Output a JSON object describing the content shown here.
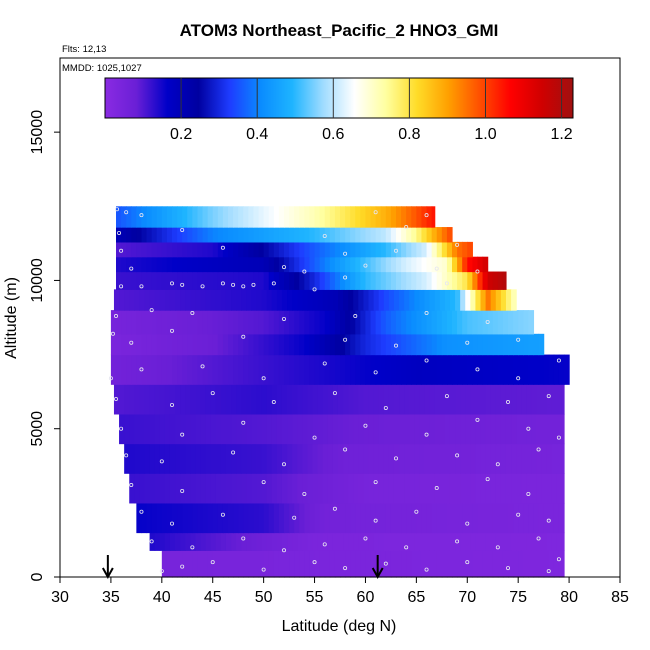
{
  "chart_data": {
    "type": "heatmap",
    "title": "ATOM3 Northeast_Pacific_2 HNO3_GMI",
    "annotations": [
      "Flts: 12,13",
      "MMDD: 1025,1027"
    ],
    "xlabel": "Latitude (deg N)",
    "ylabel": "Altitude (m)",
    "xlim": [
      30,
      85
    ],
    "ylim": [
      0,
      17500
    ],
    "x_ticks": [
      "30",
      "35",
      "40",
      "45",
      "50",
      "55",
      "60",
      "65",
      "70",
      "75",
      "80",
      "85"
    ],
    "y_ticks": [
      "0",
      "5000",
      "10000",
      "15000"
    ],
    "colorbar": {
      "range": [
        0.0,
        1.23
      ],
      "tick_labels": [
        "0.2",
        "0.4",
        "0.6",
        "0.8",
        "1.0",
        "1.2"
      ],
      "colors": [
        "#8a2be2",
        "#6a1fd6",
        "#0000c8",
        "#0000a0",
        "#1e3cff",
        "#0a8cff",
        "#1eb4ff",
        "#a0dcff",
        "#ffffff",
        "#ffffa0",
        "#ffdc28",
        "#ffa000",
        "#ff5000",
        "#ff0000",
        "#d00000",
        "#a01010"
      ]
    },
    "grid": false,
    "legend": "colorbar top",
    "arrows_lat": [
      34.7,
      61.2
    ],
    "layers": [
      {
        "bottom": 0,
        "top": 900,
        "from": 40,
        "to": 79.5,
        "values": [
          [
            40,
            0.05
          ],
          [
            79.5,
            0.03
          ]
        ]
      },
      {
        "bottom": 900,
        "top": 1500,
        "from": 38.8,
        "to": 79.5,
        "values": [
          [
            38.8,
            0.14
          ],
          [
            45,
            0.1
          ],
          [
            55,
            0.04
          ],
          [
            79.5,
            0.03
          ]
        ]
      },
      {
        "bottom": 1500,
        "top": 2500,
        "from": 37.5,
        "to": 79.5,
        "values": [
          [
            37.5,
            0.16
          ],
          [
            50,
            0.13
          ],
          [
            56,
            0.06
          ],
          [
            79.5,
            0.04
          ]
        ]
      },
      {
        "bottom": 2500,
        "top": 3500,
        "from": 36.8,
        "to": 79.5,
        "values": [
          [
            36.8,
            0.12
          ],
          [
            50,
            0.1
          ],
          [
            60,
            0.05
          ],
          [
            79.5,
            0.04
          ]
        ]
      },
      {
        "bottom": 3500,
        "top": 4500,
        "from": 36.3,
        "to": 79.5,
        "values": [
          [
            36.3,
            0.14
          ],
          [
            50,
            0.12
          ],
          [
            58,
            0.07
          ],
          [
            79.5,
            0.05
          ]
        ]
      },
      {
        "bottom": 4500,
        "top": 5500,
        "from": 35.8,
        "to": 79.5,
        "values": [
          [
            35.8,
            0.12
          ],
          [
            50,
            0.1
          ],
          [
            60,
            0.08
          ],
          [
            79.5,
            0.06
          ]
        ]
      },
      {
        "bottom": 5500,
        "top": 6500,
        "from": 35.3,
        "to": 79.5,
        "values": [
          [
            35.3,
            0.1
          ],
          [
            50,
            0.13
          ],
          [
            60,
            0.1
          ],
          [
            79.5,
            0.09
          ]
        ]
      },
      {
        "bottom": 6500,
        "top": 7500,
        "from": 35,
        "to": 80,
        "values": [
          [
            35,
            0.06
          ],
          [
            45,
            0.1
          ],
          [
            55,
            0.14
          ],
          [
            65,
            0.18
          ],
          [
            80,
            0.16
          ]
        ]
      },
      {
        "bottom": 7500,
        "top": 8200,
        "from": 35,
        "to": 77.5,
        "values": [
          [
            35,
            0.04
          ],
          [
            45,
            0.08
          ],
          [
            54,
            0.16
          ],
          [
            60,
            0.3
          ],
          [
            68,
            0.42
          ],
          [
            77.5,
            0.45
          ]
        ]
      },
      {
        "bottom": 8200,
        "top": 9000,
        "from": 35,
        "to": 76.5,
        "values": [
          [
            35,
            0.05
          ],
          [
            50,
            0.1
          ],
          [
            56,
            0.16
          ],
          [
            62,
            0.36
          ],
          [
            70,
            0.52
          ],
          [
            76.5,
            0.56
          ]
        ]
      },
      {
        "bottom": 9000,
        "top": 9700,
        "from": 35.3,
        "to": 74.8,
        "values": [
          [
            35.3,
            0.1
          ],
          [
            50,
            0.14
          ],
          [
            57,
            0.2
          ],
          [
            62,
            0.34
          ],
          [
            69,
            0.5
          ],
          [
            72,
            0.95
          ],
          [
            74.8,
            0.7
          ]
        ]
      },
      {
        "bottom": 9700,
        "top": 10300,
        "from": 35.5,
        "to": 73.8,
        "values": [
          [
            35.5,
            0.12
          ],
          [
            50,
            0.14
          ],
          [
            55,
            0.3
          ],
          [
            60,
            0.5
          ],
          [
            66,
            0.62
          ],
          [
            70,
            0.8
          ],
          [
            72,
            1.15
          ],
          [
            73.8,
            1.2
          ]
        ]
      },
      {
        "bottom": 10300,
        "top": 10800,
        "from": 35.5,
        "to": 72,
        "values": [
          [
            35.5,
            0.14
          ],
          [
            50,
            0.2
          ],
          [
            58,
            0.46
          ],
          [
            64,
            0.62
          ],
          [
            68,
            0.7
          ],
          [
            70,
            1.05
          ],
          [
            72,
            1.15
          ]
        ]
      },
      {
        "bottom": 10800,
        "top": 11300,
        "from": 35.5,
        "to": 70.5,
        "values": [
          [
            35.5,
            0.1
          ],
          [
            45,
            0.14
          ],
          [
            55,
            0.36
          ],
          [
            62,
            0.5
          ],
          [
            66,
            0.62
          ],
          [
            69,
            0.95
          ],
          [
            70.5,
            1.0
          ]
        ]
      },
      {
        "bottom": 11300,
        "top": 11800,
        "from": 35.5,
        "to": 68.5,
        "values": [
          [
            35.5,
            0.2
          ],
          [
            45,
            0.4
          ],
          [
            55,
            0.5
          ],
          [
            62,
            0.6
          ],
          [
            65,
            0.75
          ],
          [
            67,
            0.9
          ],
          [
            68.5,
            1.0
          ]
        ]
      },
      {
        "bottom": 11800,
        "top": 12500,
        "from": 35.5,
        "to": 66.8,
        "values": [
          [
            35.5,
            0.35
          ],
          [
            45,
            0.55
          ],
          [
            55,
            0.72
          ],
          [
            62,
            0.88
          ],
          [
            65,
            0.98
          ],
          [
            66.8,
            1.05
          ]
        ]
      }
    ],
    "sample_points": [
      [
        40,
        200
      ],
      [
        42,
        350
      ],
      [
        45,
        500
      ],
      [
        50,
        250
      ],
      [
        55,
        500
      ],
      [
        58,
        300
      ],
      [
        62,
        450
      ],
      [
        66,
        250
      ],
      [
        70,
        500
      ],
      [
        74,
        300
      ],
      [
        78,
        200
      ],
      [
        79,
        600
      ],
      [
        39,
        1200
      ],
      [
        43,
        1000
      ],
      [
        48,
        1300
      ],
      [
        52,
        900
      ],
      [
        56,
        1100
      ],
      [
        60,
        1300
      ],
      [
        64,
        1000
      ],
      [
        69,
        1200
      ],
      [
        73,
        1000
      ],
      [
        77,
        1300
      ],
      [
        38,
        2200
      ],
      [
        41,
        1800
      ],
      [
        46,
        2100
      ],
      [
        53,
        2000
      ],
      [
        57,
        2300
      ],
      [
        61,
        1900
      ],
      [
        65,
        2200
      ],
      [
        70,
        1800
      ],
      [
        75,
        2100
      ],
      [
        78,
        1900
      ],
      [
        37,
        3100
      ],
      [
        42,
        2900
      ],
      [
        50,
        3200
      ],
      [
        54,
        2800
      ],
      [
        61,
        3200
      ],
      [
        67,
        3000
      ],
      [
        72,
        3300
      ],
      [
        76,
        2800
      ],
      [
        36.5,
        4100
      ],
      [
        40,
        3900
      ],
      [
        47,
        4200
      ],
      [
        52,
        3800
      ],
      [
        58,
        4300
      ],
      [
        63,
        4000
      ],
      [
        69,
        4100
      ],
      [
        73,
        3800
      ],
      [
        77,
        4300
      ],
      [
        36,
        5000
      ],
      [
        42,
        4800
      ],
      [
        48,
        5200
      ],
      [
        55,
        4700
      ],
      [
        60,
        5100
      ],
      [
        66,
        4800
      ],
      [
        71,
        5300
      ],
      [
        76,
        5000
      ],
      [
        79,
        4700
      ],
      [
        35.5,
        6000
      ],
      [
        41,
        5800
      ],
      [
        45,
        6200
      ],
      [
        51,
        5900
      ],
      [
        57,
        6200
      ],
      [
        62,
        5700
      ],
      [
        68,
        6100
      ],
      [
        74,
        5900
      ],
      [
        78,
        6100
      ],
      [
        35,
        6700
      ],
      [
        38,
        7000
      ],
      [
        44,
        7100
      ],
      [
        50,
        6700
      ],
      [
        56,
        7200
      ],
      [
        61,
        6900
      ],
      [
        66,
        7300
      ],
      [
        71,
        7000
      ],
      [
        75,
        6700
      ],
      [
        79,
        7300
      ],
      [
        35.2,
        8200
      ],
      [
        37,
        7900
      ],
      [
        41,
        8300
      ],
      [
        48,
        8100
      ],
      [
        58,
        8000
      ],
      [
        63,
        7800
      ],
      [
        70,
        7900
      ],
      [
        75,
        8000
      ],
      [
        35.5,
        8800
      ],
      [
        39,
        9000
      ],
      [
        43,
        8900
      ],
      [
        52,
        8700
      ],
      [
        59,
        8800
      ],
      [
        66,
        8900
      ],
      [
        72,
        8600
      ],
      [
        36,
        9800
      ],
      [
        38,
        9800
      ],
      [
        41,
        9900
      ],
      [
        42,
        9850
      ],
      [
        44,
        9800
      ],
      [
        46,
        9900
      ],
      [
        47,
        9850
      ],
      [
        48,
        9800
      ],
      [
        49,
        9850
      ],
      [
        51,
        9900
      ],
      [
        55,
        9700
      ],
      [
        58,
        10100
      ],
      [
        68,
        9900
      ],
      [
        37,
        10400
      ],
      [
        52,
        10450
      ],
      [
        54,
        10300
      ],
      [
        60,
        10500
      ],
      [
        67,
        10400
      ],
      [
        71,
        10300
      ],
      [
        36,
        11000
      ],
      [
        46,
        11100
      ],
      [
        58,
        10900
      ],
      [
        63,
        11000
      ],
      [
        69,
        11200
      ],
      [
        35.8,
        11600
      ],
      [
        42,
        11700
      ],
      [
        56,
        11500
      ],
      [
        64,
        11800
      ],
      [
        35.6,
        12400
      ],
      [
        36.5,
        12300
      ],
      [
        38,
        12200
      ],
      [
        61,
        12300
      ],
      [
        66,
        12200
      ]
    ]
  }
}
